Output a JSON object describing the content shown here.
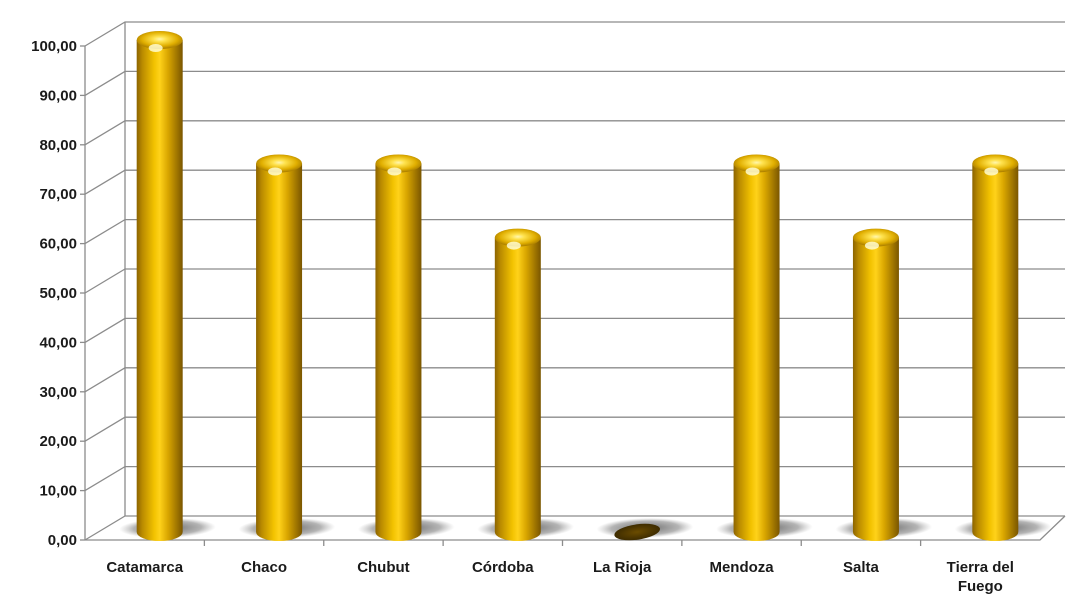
{
  "chart_data": {
    "type": "bar",
    "style": "3d-cylinder",
    "categories": [
      "Catamarca",
      "Chaco",
      "Chubut",
      "Córdoba",
      "La Rioja",
      "Mendoza",
      "Salta",
      "Tierra del Fuego"
    ],
    "category_lines": [
      [
        "Catamarca"
      ],
      [
        "Chaco"
      ],
      [
        "Chubut"
      ],
      [
        "Córdoba"
      ],
      [
        "La Rioja"
      ],
      [
        "Mendoza"
      ],
      [
        "Salta"
      ],
      [
        "Tierra del",
        "Fuego"
      ]
    ],
    "values": [
      100,
      75,
      75,
      60,
      0,
      75,
      60,
      75
    ],
    "ylim": [
      0,
      100
    ],
    "y_ticks": [
      0,
      10,
      20,
      30,
      40,
      50,
      60,
      70,
      80,
      90,
      100
    ],
    "y_tick_labels": [
      "0,00",
      "10,00",
      "20,00",
      "30,00",
      "40,00",
      "50,00",
      "60,00",
      "70,00",
      "80,00",
      "90,00",
      "100,00"
    ],
    "title": "",
    "xlabel": "",
    "ylabel": "",
    "grid": true,
    "legend": "none",
    "colors": {
      "bar_main": "#D9A600",
      "bar_light": "#FFE066",
      "bar_dark": "#8C6400",
      "grid": "#8c8c8c",
      "shadow": "#6e6e6e"
    }
  }
}
